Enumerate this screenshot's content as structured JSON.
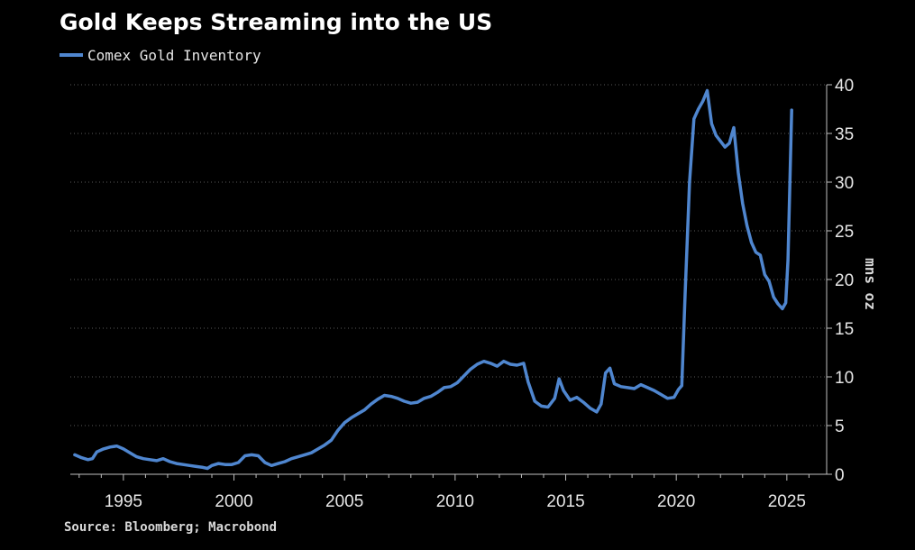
{
  "header": {
    "title": "Gold Keeps Streaming into the US"
  },
  "footer": {
    "source": "Source: Bloomberg; Macrobond"
  },
  "colors": {
    "background": "#000000",
    "line": "#4f86cf",
    "grid": "#5a5a5a",
    "axis": "#bfbfbf"
  },
  "chart_data": {
    "type": "line",
    "title": "Gold Keeps Streaming into the US",
    "xlabel": "",
    "ylabel": "mns oz",
    "xlim": [
      1992.6,
      2026.8
    ],
    "ylim": [
      0,
      40
    ],
    "x_ticks": [
      1995,
      2000,
      2005,
      2010,
      2015,
      2020,
      2025
    ],
    "y_ticks": [
      0,
      5,
      10,
      15,
      20,
      25,
      30,
      35,
      40
    ],
    "grid": "horizontal dotted",
    "legend_position": "top-left",
    "y_axis_position": "right",
    "series": [
      {
        "name": "Comex Gold Inventory",
        "color": "#4f86cf",
        "points": [
          [
            1992.8,
            2.0
          ],
          [
            1993.1,
            1.7
          ],
          [
            1993.4,
            1.5
          ],
          [
            1993.6,
            1.6
          ],
          [
            1993.8,
            2.3
          ],
          [
            1994.1,
            2.6
          ],
          [
            1994.4,
            2.8
          ],
          [
            1994.7,
            2.9
          ],
          [
            1995.0,
            2.6
          ],
          [
            1995.3,
            2.2
          ],
          [
            1995.6,
            1.8
          ],
          [
            1995.9,
            1.6
          ],
          [
            1996.2,
            1.5
          ],
          [
            1996.5,
            1.4
          ],
          [
            1996.8,
            1.6
          ],
          [
            1997.1,
            1.3
          ],
          [
            1997.4,
            1.1
          ],
          [
            1997.7,
            1.0
          ],
          [
            1998.0,
            0.9
          ],
          [
            1998.3,
            0.8
          ],
          [
            1998.6,
            0.7
          ],
          [
            1998.8,
            0.6
          ],
          [
            1999.0,
            0.9
          ],
          [
            1999.3,
            1.1
          ],
          [
            1999.6,
            1.0
          ],
          [
            1999.9,
            1.0
          ],
          [
            2000.2,
            1.2
          ],
          [
            2000.5,
            1.9
          ],
          [
            2000.8,
            2.0
          ],
          [
            2001.1,
            1.9
          ],
          [
            2001.4,
            1.2
          ],
          [
            2001.7,
            0.9
          ],
          [
            2002.0,
            1.1
          ],
          [
            2002.3,
            1.3
          ],
          [
            2002.6,
            1.6
          ],
          [
            2002.9,
            1.8
          ],
          [
            2003.2,
            2.0
          ],
          [
            2003.5,
            2.2
          ],
          [
            2003.8,
            2.6
          ],
          [
            2004.1,
            3.0
          ],
          [
            2004.4,
            3.5
          ],
          [
            2004.7,
            4.5
          ],
          [
            2005.0,
            5.3
          ],
          [
            2005.3,
            5.8
          ],
          [
            2005.6,
            6.2
          ],
          [
            2005.9,
            6.6
          ],
          [
            2006.2,
            7.2
          ],
          [
            2006.5,
            7.7
          ],
          [
            2006.8,
            8.1
          ],
          [
            2007.1,
            8.0
          ],
          [
            2007.4,
            7.8
          ],
          [
            2007.7,
            7.5
          ],
          [
            2008.0,
            7.3
          ],
          [
            2008.3,
            7.4
          ],
          [
            2008.6,
            7.8
          ],
          [
            2008.9,
            8.0
          ],
          [
            2009.2,
            8.4
          ],
          [
            2009.5,
            8.9
          ],
          [
            2009.8,
            9.0
          ],
          [
            2010.1,
            9.4
          ],
          [
            2010.4,
            10.1
          ],
          [
            2010.7,
            10.8
          ],
          [
            2011.0,
            11.3
          ],
          [
            2011.3,
            11.6
          ],
          [
            2011.6,
            11.4
          ],
          [
            2011.9,
            11.1
          ],
          [
            2012.2,
            11.6
          ],
          [
            2012.5,
            11.3
          ],
          [
            2012.8,
            11.2
          ],
          [
            2013.1,
            11.4
          ],
          [
            2013.3,
            9.5
          ],
          [
            2013.6,
            7.5
          ],
          [
            2013.9,
            7.0
          ],
          [
            2014.2,
            6.9
          ],
          [
            2014.5,
            7.8
          ],
          [
            2014.7,
            9.8
          ],
          [
            2014.9,
            8.6
          ],
          [
            2015.2,
            7.6
          ],
          [
            2015.5,
            7.9
          ],
          [
            2015.8,
            7.4
          ],
          [
            2016.1,
            6.8
          ],
          [
            2016.4,
            6.4
          ],
          [
            2016.6,
            7.2
          ],
          [
            2016.8,
            10.4
          ],
          [
            2017.0,
            10.9
          ],
          [
            2017.2,
            9.3
          ],
          [
            2017.5,
            9.0
          ],
          [
            2017.8,
            8.9
          ],
          [
            2018.1,
            8.8
          ],
          [
            2018.4,
            9.2
          ],
          [
            2018.7,
            8.9
          ],
          [
            2019.0,
            8.6
          ],
          [
            2019.3,
            8.2
          ],
          [
            2019.6,
            7.8
          ],
          [
            2019.9,
            7.9
          ],
          [
            2020.1,
            8.7
          ],
          [
            2020.25,
            9.1
          ],
          [
            2020.4,
            18.5
          ],
          [
            2020.6,
            30.0
          ],
          [
            2020.8,
            36.5
          ],
          [
            2021.0,
            37.5
          ],
          [
            2021.2,
            38.3
          ],
          [
            2021.4,
            39.4
          ],
          [
            2021.6,
            36.0
          ],
          [
            2021.8,
            34.8
          ],
          [
            2022.0,
            34.2
          ],
          [
            2022.2,
            33.6
          ],
          [
            2022.4,
            34.0
          ],
          [
            2022.6,
            35.6
          ],
          [
            2022.8,
            31.0
          ],
          [
            2023.0,
            27.8
          ],
          [
            2023.2,
            25.5
          ],
          [
            2023.4,
            23.8
          ],
          [
            2023.6,
            22.8
          ],
          [
            2023.8,
            22.5
          ],
          [
            2024.0,
            20.5
          ],
          [
            2024.2,
            19.8
          ],
          [
            2024.4,
            18.2
          ],
          [
            2024.6,
            17.5
          ],
          [
            2024.8,
            17.0
          ],
          [
            2024.95,
            17.6
          ],
          [
            2025.05,
            22.0
          ],
          [
            2025.15,
            31.0
          ],
          [
            2025.22,
            37.4
          ]
        ]
      }
    ]
  }
}
